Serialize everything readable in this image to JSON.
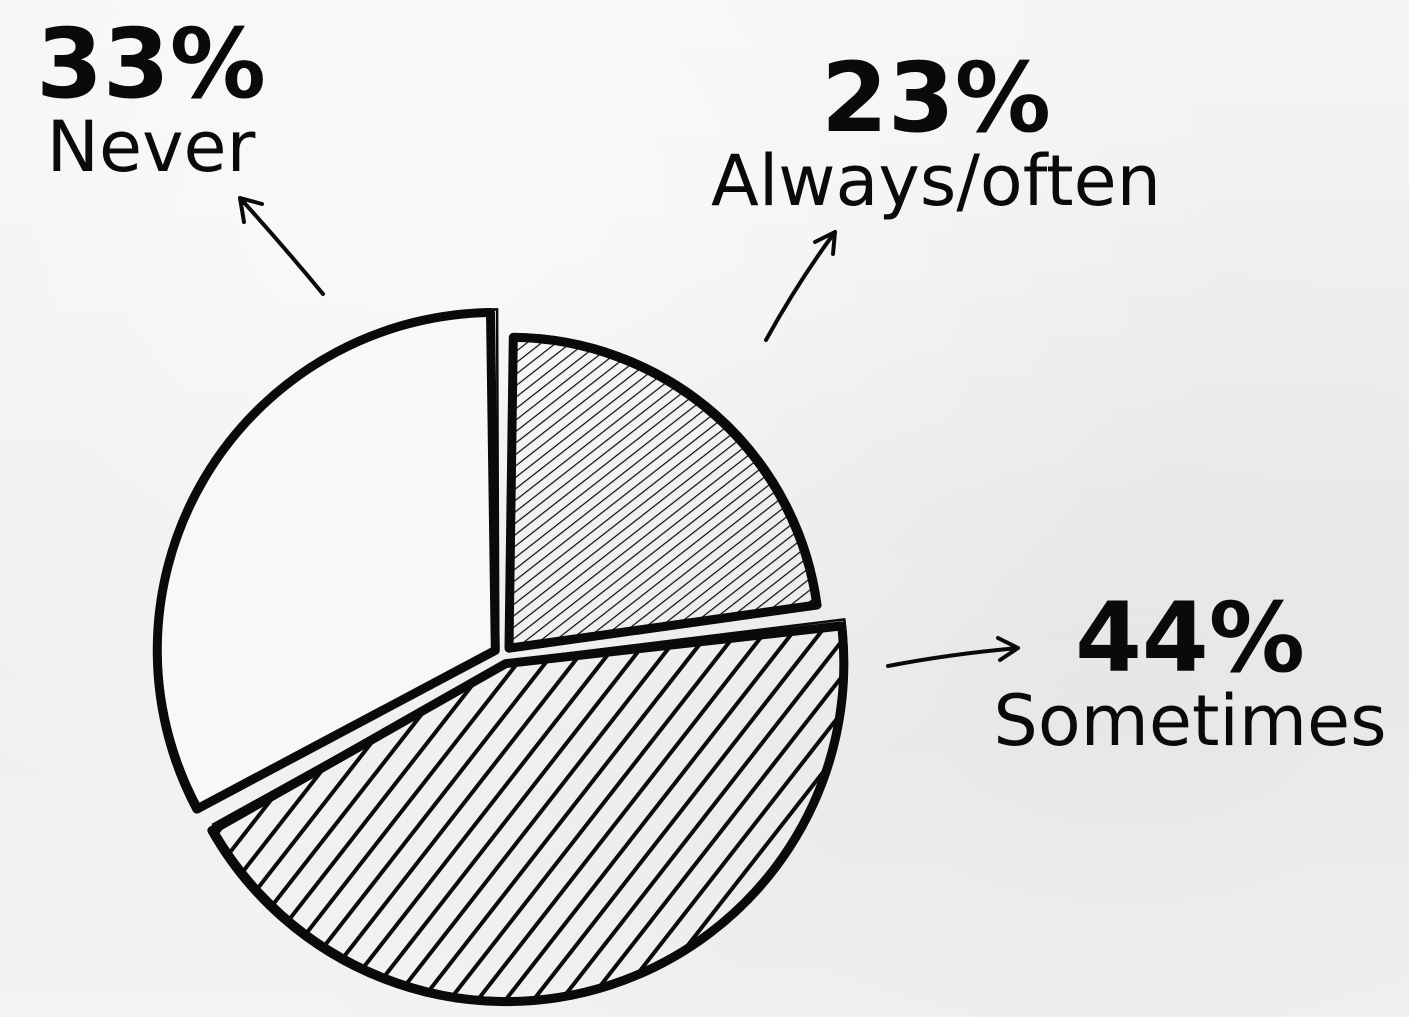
{
  "chart_data": {
    "type": "pie",
    "slices": [
      {
        "label": "Always/often",
        "value": 23,
        "pct_text": "23%",
        "hatch": "fine"
      },
      {
        "label": "Sometimes",
        "value": 44,
        "pct_text": "44%",
        "hatch": "coarse"
      },
      {
        "label": "Never",
        "value": 33,
        "pct_text": "33%",
        "hatch": "none"
      }
    ],
    "style": "hand-drawn sketch",
    "colors": {
      "ink": "#0a0a0a",
      "paper": "#f2f2f2"
    }
  }
}
